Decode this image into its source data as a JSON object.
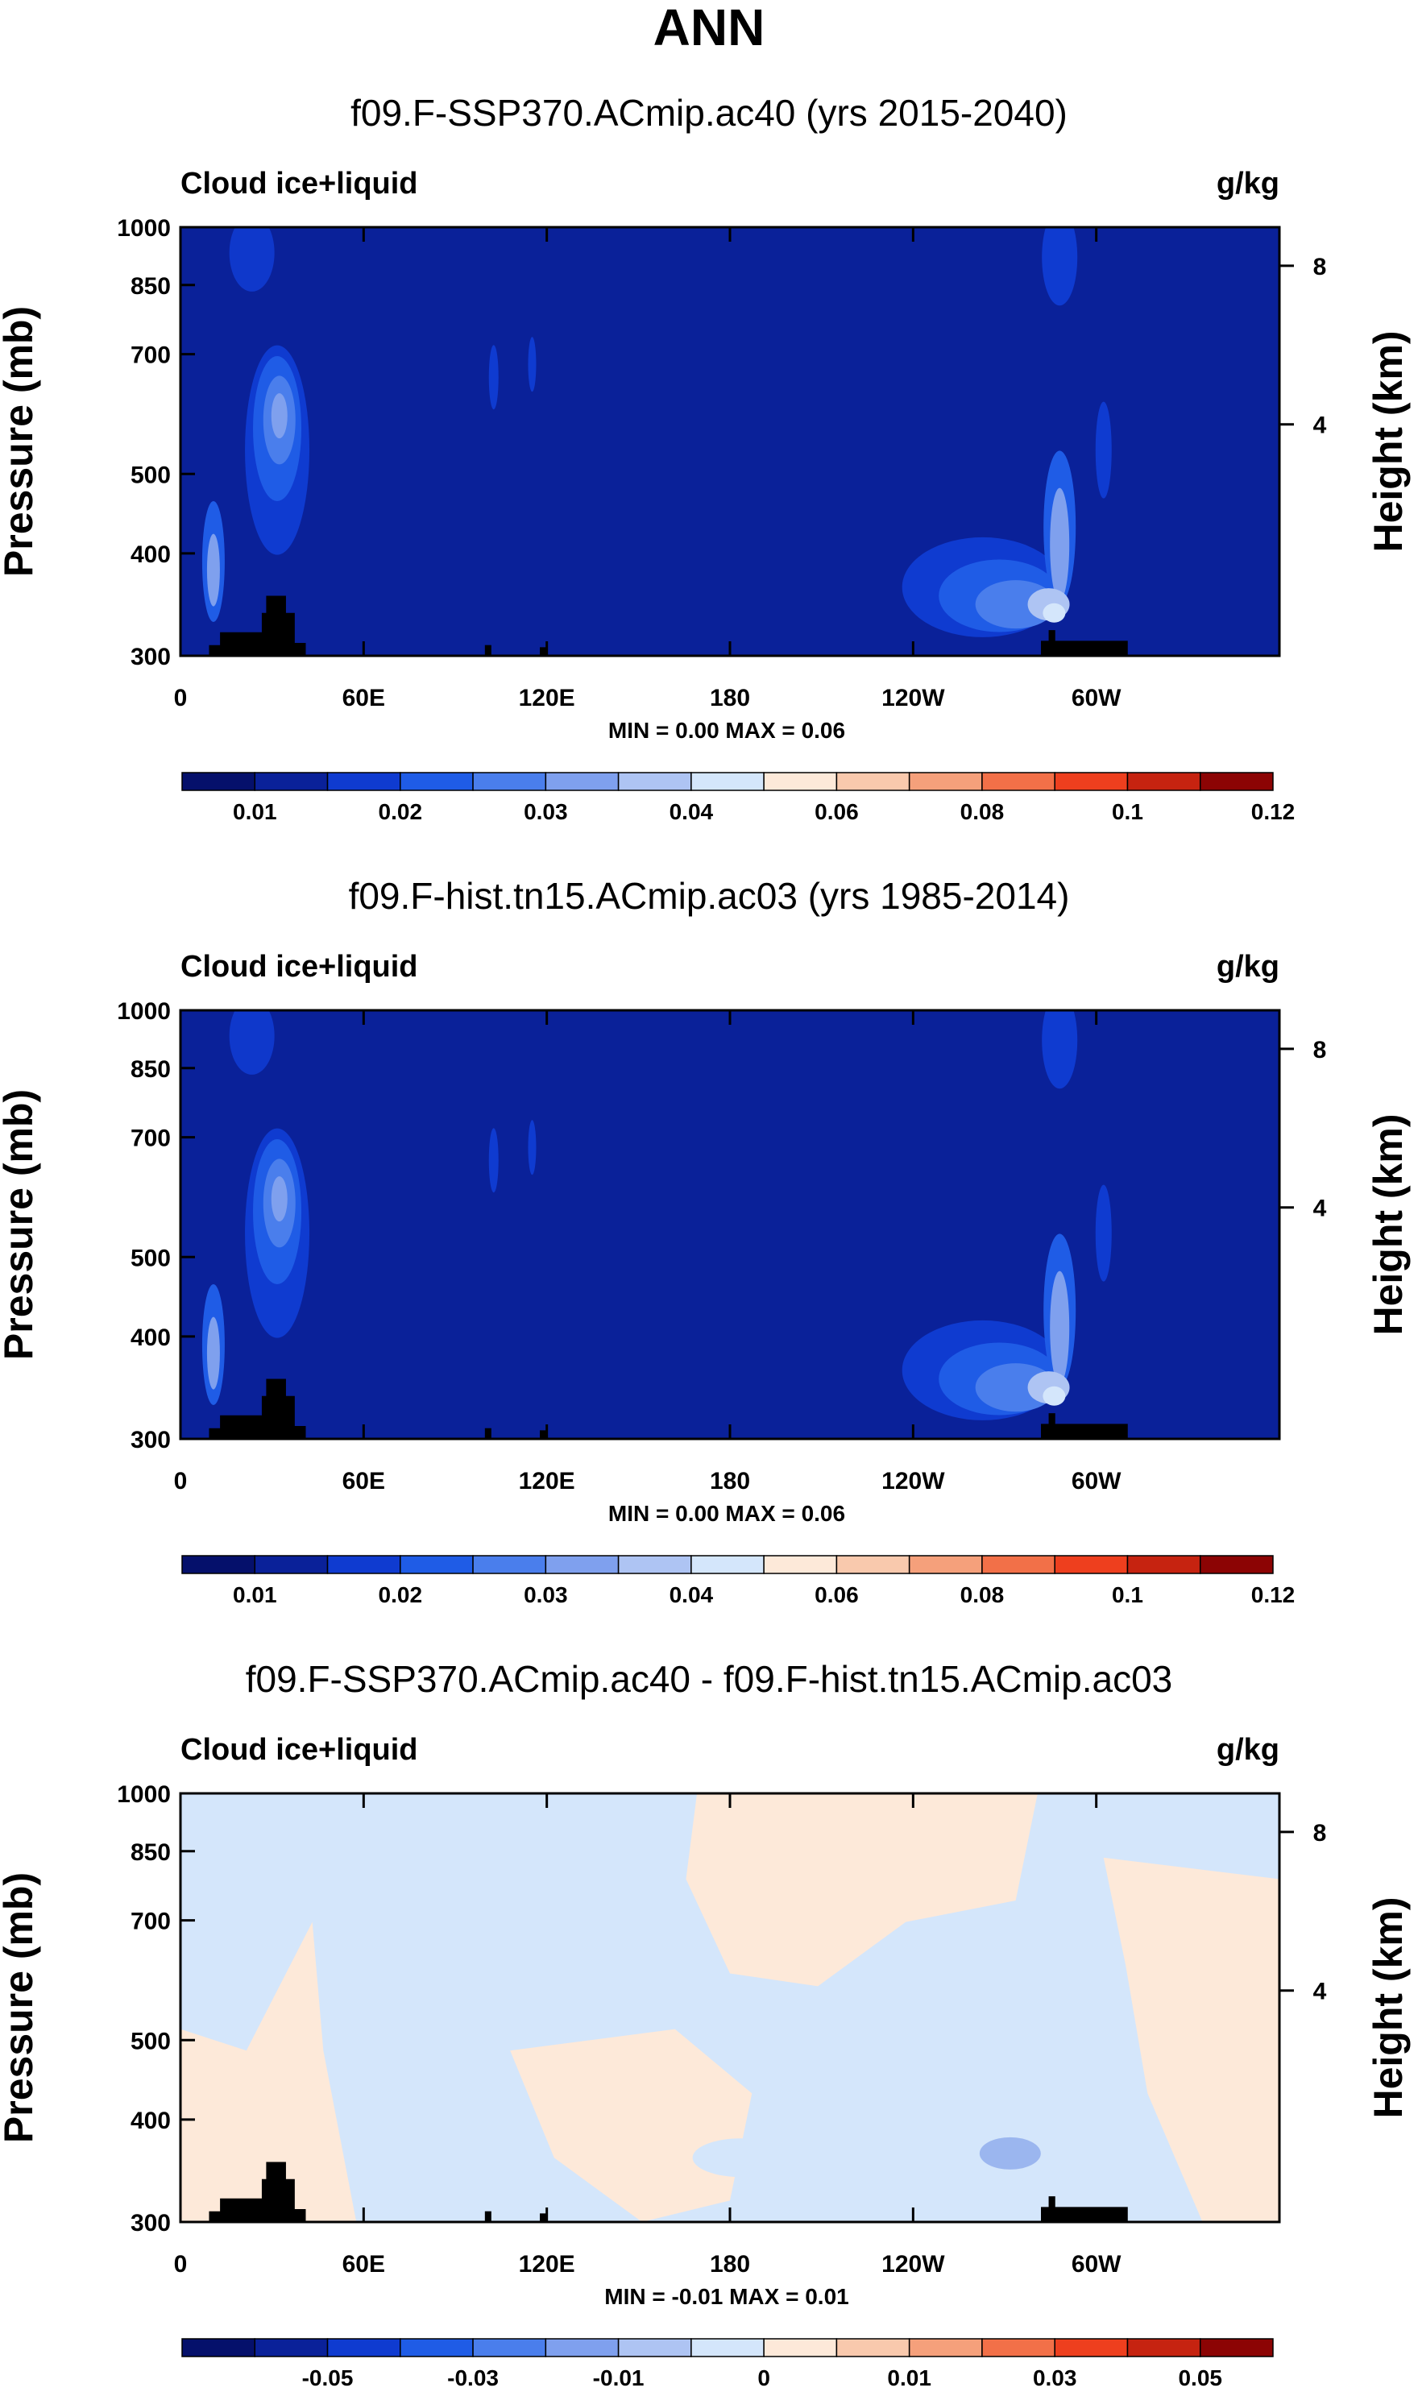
{
  "figure": {
    "title": "ANN"
  },
  "colors": {
    "background_field": "#0a2199",
    "land_mask": "#000000",
    "positive_diff": "#fde9d9",
    "negative_diff": "#d4e6fb",
    "diff_weak_negative": "#9bb6ef"
  },
  "colormap": [
    "#05106b",
    "#0a2199",
    "#0f3bd0",
    "#1f5ce6",
    "#4a7eec",
    "#7fa0ee",
    "#aec4f3",
    "#d4e6fb",
    "#fde9d9",
    "#f9c9ad",
    "#f5a07b",
    "#f27048",
    "#ee3f1e",
    "#c62310",
    "#8c0404"
  ],
  "chart_data": [
    {
      "type": "heatmap",
      "panel_title": "f09.F-SSP370.ACmip.ac40 (yrs 2015-2040)",
      "left_label": "Cloud ice+liquid",
      "right_label": "g/kg",
      "ylabel": "Pressure (mb)",
      "ylabel_right": "Height (km)",
      "y_ticks": [
        "300",
        "400",
        "500",
        "700",
        "850",
        "1000"
      ],
      "y_tick_values": [
        300,
        400,
        500,
        700,
        850,
        1000
      ],
      "y_right_ticks": [
        "8",
        "4"
      ],
      "x_ticks": [
        "0",
        "60E",
        "120E",
        "180",
        "120W",
        "60W"
      ],
      "x_tick_values": [
        0,
        60,
        120,
        180,
        240,
        300
      ],
      "xlim": [
        0,
        360
      ],
      "ylim": [
        300,
        1000
      ],
      "stats": "MIN =   0.00   MAX =   0.06",
      "colorbar_labels": [
        "0.01",
        "0.02",
        "0.03",
        "0.04",
        "0.06",
        "0.08",
        "0.1",
        "0.12"
      ],
      "kind": "field"
    },
    {
      "type": "heatmap",
      "panel_title": "f09.F-hist.tn15.ACmip.ac03 (yrs 1985-2014)",
      "left_label": "Cloud ice+liquid",
      "right_label": "g/kg",
      "ylabel": "Pressure (mb)",
      "ylabel_right": "Height (km)",
      "y_ticks": [
        "300",
        "400",
        "500",
        "700",
        "850",
        "1000"
      ],
      "y_tick_values": [
        300,
        400,
        500,
        700,
        850,
        1000
      ],
      "y_right_ticks": [
        "8",
        "4"
      ],
      "x_ticks": [
        "0",
        "60E",
        "120E",
        "180",
        "120W",
        "60W"
      ],
      "x_tick_values": [
        0,
        60,
        120,
        180,
        240,
        300
      ],
      "xlim": [
        0,
        360
      ],
      "ylim": [
        300,
        1000
      ],
      "stats": "MIN =   0.00   MAX =   0.06",
      "colorbar_labels": [
        "0.01",
        "0.02",
        "0.03",
        "0.04",
        "0.06",
        "0.08",
        "0.1",
        "0.12"
      ],
      "kind": "field"
    },
    {
      "type": "heatmap",
      "panel_title": "f09.F-SSP370.ACmip.ac40 - f09.F-hist.tn15.ACmip.ac03",
      "left_label": "Cloud ice+liquid",
      "right_label": "g/kg",
      "ylabel": "Pressure (mb)",
      "ylabel_right": "Height (km)",
      "y_ticks": [
        "300",
        "400",
        "500",
        "700",
        "850",
        "1000"
      ],
      "y_tick_values": [
        300,
        400,
        500,
        700,
        850,
        1000
      ],
      "y_right_ticks": [
        "8",
        "4"
      ],
      "x_ticks": [
        "0",
        "60E",
        "120E",
        "180",
        "120W",
        "60W"
      ],
      "x_tick_values": [
        0,
        60,
        120,
        180,
        240,
        300
      ],
      "xlim": [
        0,
        360
      ],
      "ylim": [
        300,
        1000
      ],
      "stats": "MIN =  -0.01   MAX =   0.01",
      "colorbar_labels": [
        "-0.05",
        "-0.03",
        "-0.01",
        "0",
        "0.01",
        "0.03",
        "0.05"
      ],
      "kind": "diff"
    }
  ]
}
